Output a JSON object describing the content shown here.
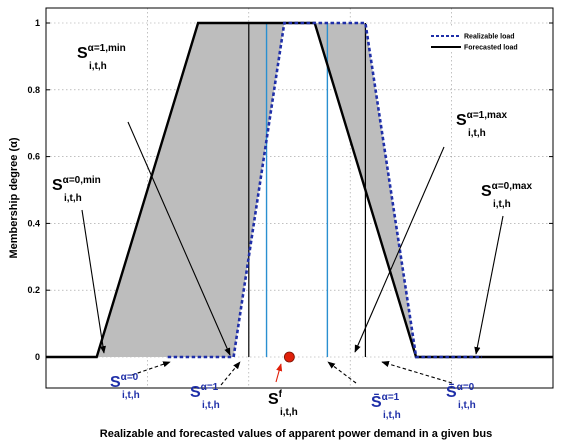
{
  "chart_data": {
    "type": "line",
    "xlabel": "Realizable and forecasted values of apparent power demand in a given bus",
    "ylabel": "Membership degree (α)",
    "ylim": [
      0,
      1
    ],
    "yticks": [
      "0",
      "0.2",
      "0.4",
      "0.6",
      "0.8",
      "1"
    ],
    "grid": true,
    "legend_position": "top-right",
    "colors": {
      "realizable": "#1f2fa8",
      "forecasted": "#000000",
      "shade": "#bdbdbd",
      "cut": "#2a8fd0",
      "marker": "#e0200a",
      "blue_label": "#1f2fa8",
      "red_arrow": "#e0200a"
    },
    "series": [
      {
        "name": "Realizable load",
        "style": "dashed",
        "x": [
          0.24,
          0.37,
          0.47,
          0.63,
          0.73,
          0.86
        ],
        "y": [
          0,
          0,
          1,
          1,
          0,
          0
        ]
      },
      {
        "name": "Forecasted load",
        "style": "solid",
        "x": [
          0,
          0.1,
          0.3,
          0.53,
          0.73,
          0.9,
          1.0
        ],
        "y": [
          0,
          0,
          1,
          1,
          0,
          0,
          0
        ]
      }
    ],
    "alpha_cut_lines": [
      0.4,
      0.435,
      0.555,
      0.63
    ],
    "forecast_point": {
      "x": 0.48,
      "y": 0
    },
    "annotations": [
      {
        "main": "S",
        "sup": "α=1,min",
        "sub": "i,t,h",
        "color": "black"
      },
      {
        "main": "S",
        "sup": "α=0,min",
        "sub": "i,t,h",
        "color": "black"
      },
      {
        "main": "S",
        "sup": "α=1,max",
        "sub": "i,t,h",
        "color": "black"
      },
      {
        "main": "S",
        "sup": "α=0,max",
        "sub": "i,t,h",
        "color": "black"
      },
      {
        "main": "S",
        "sup": "α=0",
        "sub": "i,t,h",
        "color": "blue"
      },
      {
        "main": "S",
        "sup": "α=1",
        "sub": "i,t,h",
        "color": "blue"
      },
      {
        "main": "S",
        "sup": "f",
        "sub": "i,t,h",
        "color": "black"
      },
      {
        "main": "S̄",
        "sup": "α=1",
        "sub": "i,t,h",
        "color": "blue"
      },
      {
        "main": "S̄",
        "sup": "α=0",
        "sub": "i,t,h",
        "color": "blue"
      }
    ]
  }
}
